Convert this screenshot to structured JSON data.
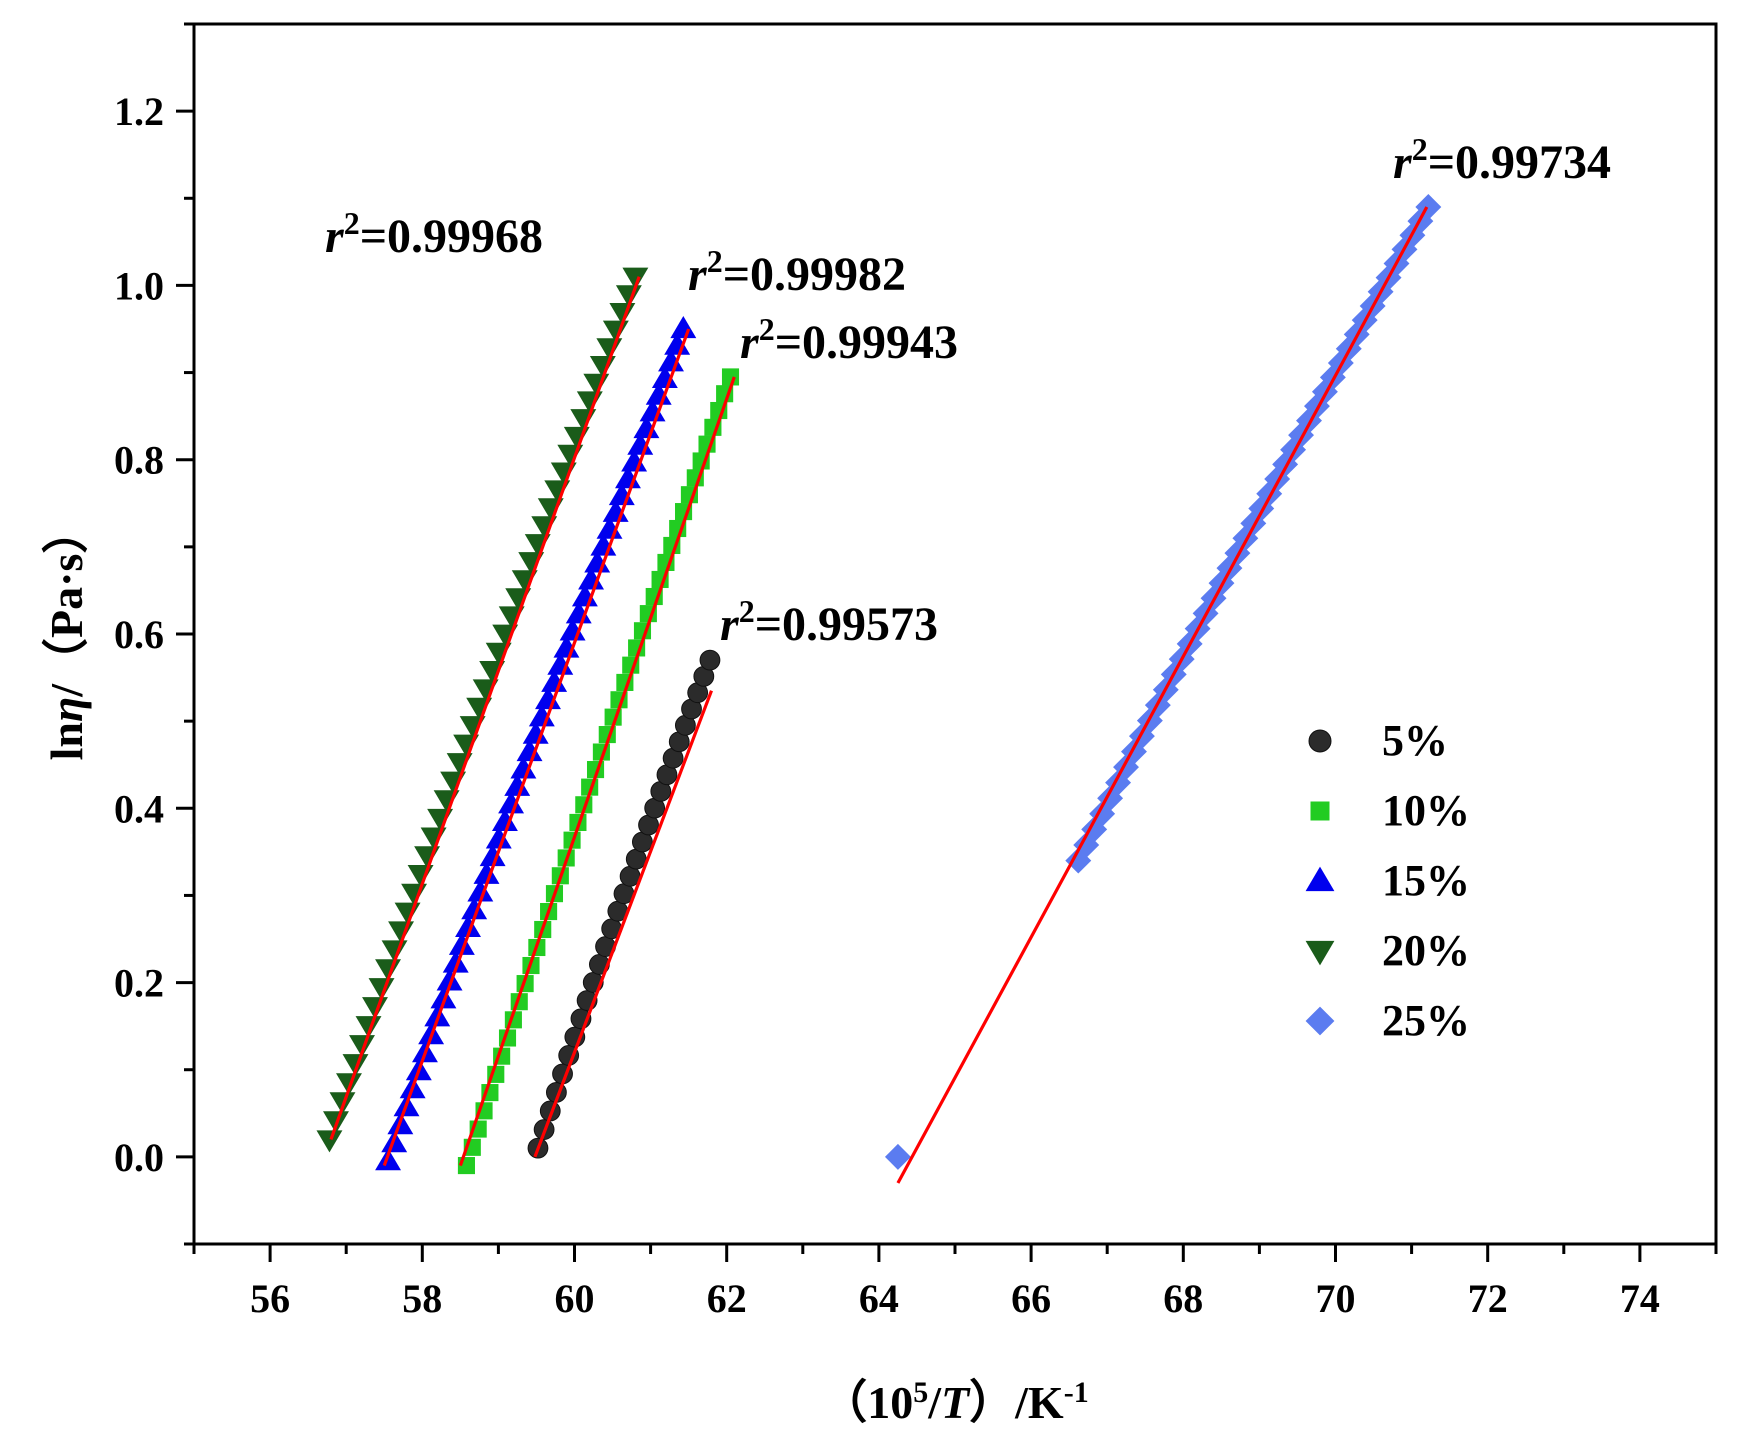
{
  "chart_data": {
    "type": "scatter",
    "title": "",
    "xlabel": "（10⁵/T）/K⁻¹",
    "ylabel": "lnη/（Pa·s）",
    "xlabel_parts": {
      "open": "（",
      "num": "10",
      "sup": "5",
      "slash": "/",
      "var": "T",
      "close": "）",
      "unit": "/K",
      "unit_sup": "-1"
    },
    "ylabel_parts": {
      "fn": "ln",
      "var": "η",
      "rest": "/（Pa·s）"
    },
    "xlim": [
      55,
      75
    ],
    "ylim": [
      -0.1,
      1.3
    ],
    "xticks": [
      "56",
      "58",
      "60",
      "62",
      "64",
      "66",
      "68",
      "70",
      "72",
      "74"
    ],
    "yticks": [
      "0.0",
      "0.2",
      "0.4",
      "0.6",
      "0.8",
      "1.0",
      "1.2"
    ],
    "fit_color": "#ff0000",
    "series": [
      {
        "name": "5%",
        "marker": "circle",
        "color": "#2b2b2b",
        "x_start": 59.52,
        "x_end": 61.78,
        "count": 29,
        "y_start": 0.01,
        "y_end": 0.57,
        "fit": [
          [
            59.48,
            0.0
          ],
          [
            61.8,
            0.535
          ]
        ],
        "r2_label": "r",
        "r2_sup": "2",
        "r2_value": "=0.99573"
      },
      {
        "name": "10%",
        "marker": "square",
        "color": "#22cc22",
        "x_start": 58.58,
        "x_end": 62.05,
        "count": 46,
        "y_start": -0.01,
        "y_end": 0.895,
        "fit": [
          [
            58.5,
            -0.01
          ],
          [
            62.1,
            0.895
          ]
        ],
        "r2_label": "r",
        "r2_sup": "2",
        "r2_value": "=0.99943"
      },
      {
        "name": "15%",
        "marker": "triangle-up",
        "color": "#0000ee",
        "x_start": 57.55,
        "x_end": 61.43,
        "count": 49,
        "y_start": -0.005,
        "y_end": 0.95,
        "fit": [
          [
            57.5,
            -0.01
          ],
          [
            61.5,
            0.95
          ]
        ],
        "r2_label": "r",
        "r2_sup": "2",
        "r2_value": "=0.99982"
      },
      {
        "name": "20%",
        "marker": "triangle-down",
        "color": "#1a5c1a",
        "x_start": 56.78,
        "x_end": 60.8,
        "count": 48,
        "y_start": 0.02,
        "y_end": 1.01,
        "fit": [
          [
            56.8,
            0.02
          ],
          [
            60.85,
            1.01
          ]
        ],
        "r2_label": "r",
        "r2_sup": "2",
        "r2_value": "=0.99968"
      },
      {
        "name": "25%",
        "marker": "diamond",
        "color": "#5b7cf0",
        "first_point": [
          64.25,
          0.0
        ],
        "x_start": 66.62,
        "x_end": 71.22,
        "count": 45,
        "y_start": 0.34,
        "y_end": 1.09,
        "fit": [
          [
            64.25,
            -0.03
          ],
          [
            71.2,
            1.09
          ]
        ],
        "r2_label": "r",
        "r2_sup": "2",
        "r2_value": "=0.99734"
      }
    ]
  }
}
